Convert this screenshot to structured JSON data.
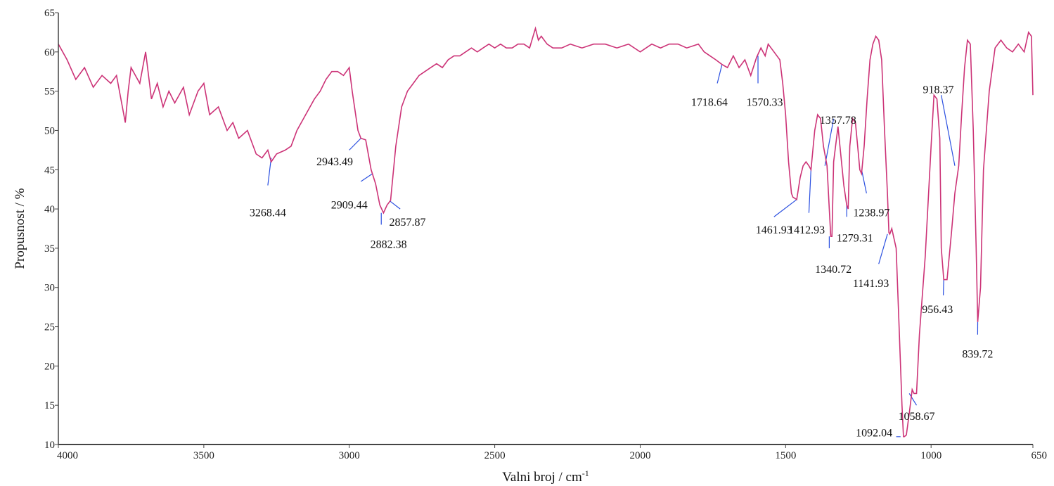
{
  "chart_data": {
    "type": "line",
    "title": "",
    "xlabel": "Valni broj / cm",
    "xlabel_sup": "-1",
    "ylabel": "Propusnost / %",
    "xlim": [
      4000,
      650
    ],
    "ylim": [
      10,
      65
    ],
    "x_reversed": true,
    "grid": false,
    "legend": "none",
    "colors": {
      "spectrum": "#cc3377",
      "annotation": "#2a4fe0",
      "axis": "#444444"
    },
    "x_ticks": [
      4000,
      3500,
      3000,
      2500,
      2000,
      1500,
      1000,
      650
    ],
    "y_ticks": [
      10,
      15,
      20,
      25,
      30,
      35,
      40,
      45,
      50,
      55,
      60,
      65
    ],
    "series": [
      {
        "x": [
          4000,
          3970,
          3940,
          3910,
          3880,
          3850,
          3820,
          3800,
          3770,
          3760,
          3750,
          3720,
          3700,
          3680,
          3660,
          3640,
          3620,
          3600,
          3570,
          3550,
          3520,
          3500,
          3480,
          3450,
          3420,
          3400,
          3380,
          3350,
          3320,
          3300,
          3280,
          3268.44,
          3250,
          3220,
          3200,
          3180,
          3150,
          3120,
          3100,
          3080,
          3060,
          3040,
          3020,
          3000,
          2990,
          2970,
          2960,
          2943.49,
          2925,
          2909.44,
          2895,
          2882.38,
          2870,
          2857.87,
          2840,
          2820,
          2800,
          2780,
          2760,
          2740,
          2720,
          2700,
          2680,
          2660,
          2640,
          2620,
          2600,
          2580,
          2560,
          2540,
          2520,
          2500,
          2480,
          2460,
          2440,
          2420,
          2400,
          2380,
          2360,
          2350,
          2340,
          2320,
          2300,
          2270,
          2240,
          2200,
          2160,
          2120,
          2080,
          2040,
          2000,
          1960,
          1930,
          1900,
          1870,
          1840,
          1800,
          1780,
          1760,
          1740,
          1718.64,
          1700,
          1680,
          1660,
          1640,
          1620,
          1600,
          1585,
          1570.33,
          1560,
          1540,
          1520,
          1510,
          1500,
          1490,
          1480,
          1475,
          1461.93,
          1450,
          1440,
          1430,
          1420,
          1412.93,
          1400,
          1390,
          1380,
          1370,
          1357.78,
          1350,
          1345,
          1340.72,
          1335,
          1320,
          1300,
          1290,
          1285,
          1279.31,
          1270,
          1260,
          1250,
          1245,
          1238.97,
          1230,
          1220,
          1210,
          1200,
          1190,
          1180,
          1170,
          1160,
          1150,
          1145,
          1141.93,
          1135,
          1120,
          1110,
          1100,
          1095,
          1092.04,
          1085,
          1075,
          1065,
          1058.67,
          1050,
          1040,
          1020,
          1000,
          990,
          980,
          970,
          965,
          956.43,
          945,
          930,
          918.37,
          905,
          895,
          885,
          875,
          865,
          855,
          845,
          839.72,
          830,
          820,
          800,
          780,
          760,
          740,
          720,
          700,
          680,
          665,
          655,
          650
        ],
        "y": [
          61,
          59,
          56.5,
          58,
          55.5,
          57,
          56,
          57,
          51,
          55,
          58,
          56,
          60,
          54,
          56,
          53,
          55,
          53.5,
          55.5,
          52,
          55,
          56,
          52,
          53,
          50,
          51,
          49,
          50,
          47,
          46.5,
          47.5,
          46,
          47,
          47.5,
          48,
          50,
          52,
          54,
          55,
          56.5,
          57.5,
          57.5,
          57,
          58,
          55,
          50,
          49,
          48.8,
          45,
          43.2,
          40.5,
          39.5,
          40.5,
          41.1,
          48,
          53,
          55,
          56,
          57,
          57.5,
          58,
          58.5,
          58,
          59,
          59.5,
          59.5,
          60,
          60.5,
          60,
          60.5,
          61,
          60.5,
          61,
          60.5,
          60.5,
          61,
          61,
          60.5,
          63,
          61.5,
          62,
          61,
          60.5,
          60.5,
          61,
          60.5,
          61,
          61,
          60.5,
          61,
          60,
          61,
          60.5,
          61,
          61,
          60.5,
          61,
          60,
          59.5,
          59,
          58.4,
          58,
          59.5,
          58,
          59,
          57,
          59.3,
          60.5,
          59.5,
          61,
          60,
          59,
          56,
          52,
          46,
          42,
          41.5,
          41.2,
          44,
          45.5,
          46,
          45.5,
          45,
          50,
          52,
          51.5,
          48,
          45.5,
          40,
          36.5,
          36.5,
          46,
          50.5,
          43,
          40.5,
          40,
          48,
          51.5,
          51,
          47,
          45,
          44.5,
          48,
          54,
          59,
          61,
          62,
          61.5,
          59,
          50,
          42,
          37,
          36.8,
          37.5,
          35,
          25,
          15,
          11,
          11,
          11.2,
          14,
          17,
          16.5,
          16.5,
          24,
          34,
          48,
          54.5,
          54,
          49,
          35,
          31,
          31,
          37,
          42,
          45.5,
          52,
          58,
          61.5,
          61,
          50,
          35,
          25.6,
          30,
          45,
          55,
          60.5,
          61.5,
          60.5,
          60,
          61,
          60,
          62.5,
          62,
          54.5
        ]
      }
    ],
    "peak_labels": [
      {
        "text": "3268.44",
        "x": 3268.44,
        "y": 46.5,
        "lx": 3280,
        "ly": 43,
        "tx": 3280,
        "ty": 39.5,
        "anchor": "middle"
      },
      {
        "text": "2943.49",
        "x": 2960,
        "y": 49,
        "lx": 3000,
        "ly": 47.5,
        "tx": 3050,
        "ty": 46,
        "anchor": "middle"
      },
      {
        "text": "2909.44",
        "x": 2920,
        "y": 44.5,
        "lx": 2960,
        "ly": 43.5,
        "tx": 3000,
        "ty": 40.5,
        "anchor": "middle"
      },
      {
        "text": "2882.38",
        "x": 2890,
        "y": 39.5,
        "lx": 2890,
        "ly": 38,
        "tx": 2865,
        "ty": 35.5,
        "anchor": "middle"
      },
      {
        "text": "2857.87",
        "x": 2860,
        "y": 41,
        "lx": 2825,
        "ly": 40,
        "tx": 2800,
        "ty": 38.3,
        "anchor": "middle"
      },
      {
        "text": "1718.64",
        "x": 1718.64,
        "y": 58.4,
        "lx": 1735,
        "ly": 56,
        "tx": 1762,
        "ty": 53.6,
        "anchor": "middle"
      },
      {
        "text": "1570.33",
        "x": 1595,
        "y": 59.5,
        "lx": 1595,
        "ly": 56,
        "tx": 1572,
        "ty": 53.6,
        "anchor": "middle"
      },
      {
        "text": "1357.78",
        "x": 1365,
        "y": 45.5,
        "lx": 1335,
        "ly": 51.5,
        "tx": 1320,
        "ty": 51.3,
        "anchor": "middle"
      },
      {
        "text": "1461.93",
        "x": 1461.93,
        "y": 41.2,
        "lx": 1540,
        "ly": 39,
        "tx": 1540,
        "ty": 37.3,
        "anchor": "middle"
      },
      {
        "text": "1412.93",
        "x": 1412.93,
        "y": 45,
        "lx": 1420,
        "ly": 39.5,
        "tx": 1428,
        "ty": 37.3,
        "anchor": "middle"
      },
      {
        "text": "1279.31",
        "x": 1290,
        "y": 40.5,
        "lx": 1290,
        "ly": 39,
        "tx": 1262,
        "ty": 36.3,
        "anchor": "middle"
      },
      {
        "text": "1238.97",
        "x": 1238.97,
        "y": 45,
        "lx": 1222,
        "ly": 42,
        "tx": 1205,
        "ty": 39.5,
        "anchor": "middle"
      },
      {
        "text": "1340.72",
        "x": 1350,
        "y": 36.5,
        "lx": 1350,
        "ly": 35,
        "tx": 1336,
        "ty": 32.3,
        "anchor": "middle"
      },
      {
        "text": "1141.93",
        "x": 1150,
        "y": 36.8,
        "lx": 1180,
        "ly": 33,
        "tx": 1207,
        "ty": 30.5,
        "anchor": "middle"
      },
      {
        "text": "918.37",
        "x": 918.37,
        "y": 45.5,
        "lx": 965,
        "ly": 54.5,
        "tx": 975,
        "ty": 55.2,
        "anchor": "middle"
      },
      {
        "text": "956.43",
        "x": 956.43,
        "y": 31,
        "lx": 958,
        "ly": 29,
        "tx": 978,
        "ty": 27.2,
        "anchor": "middle"
      },
      {
        "text": "839.72",
        "x": 839.72,
        "y": 25.6,
        "lx": 840,
        "ly": 24,
        "tx": 840,
        "ty": 21.5,
        "anchor": "middle"
      },
      {
        "text": "1092.04",
        "x": 1105,
        "y": 11,
        "lx": 1120,
        "ly": 11,
        "tx": 1133,
        "ty": 11.5,
        "anchor": "end"
      },
      {
        "text": "1058.67",
        "x": 1075,
        "y": 16.5,
        "lx": 1050,
        "ly": 15,
        "tx": 1050,
        "ty": 13.6,
        "anchor": "middle"
      }
    ]
  }
}
